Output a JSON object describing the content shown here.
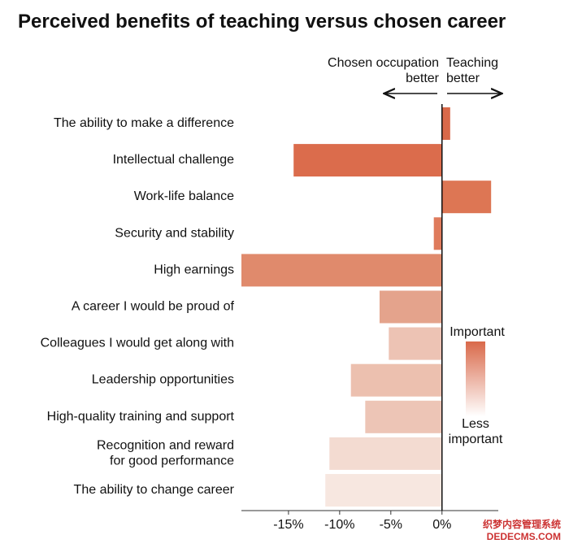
{
  "chart_data": {
    "type": "hbar",
    "title": "Perceived benefits of teaching versus chosen career",
    "annotations": {
      "left": "Chosen occupation\nbetter",
      "right": "Teaching\nbetter"
    },
    "legend": {
      "high": "Important",
      "low": "Less\nimportant",
      "high_color": "#d9694a",
      "low_color": "#ffffff"
    },
    "categories": [
      "The ability to make a difference",
      "Intellectual challenge",
      "Work-life balance",
      "Security and stability",
      "High earnings",
      "A career I would be proud of",
      "Colleagues I would get along with",
      "Leadership opportunities",
      "High-quality training and support",
      "Recognition and reward\nfor good performance",
      "The ability to change career"
    ],
    "values": [
      0.8,
      -14.5,
      4.8,
      -0.8,
      -19.6,
      -6.1,
      -5.2,
      -8.9,
      -7.5,
      -11.0,
      -11.4
    ],
    "colors": [
      "#d9694a",
      "#db6c4c",
      "#dd7654",
      "#df7b5c",
      "#e08a6c",
      "#e4a38c",
      "#edc3b4",
      "#ecc0af",
      "#edc5b6",
      "#f3dbd1",
      "#f7e7e0"
    ],
    "xlim": [
      -19.6,
      5.5
    ],
    "xticks": [
      {
        "value": -15,
        "label": "-15%"
      },
      {
        "value": -10,
        "label": "-10%"
      },
      {
        "value": -5,
        "label": "-5%"
      },
      {
        "value": 0,
        "label": "0%"
      }
    ],
    "watermark": [
      "织梦内容管理系统",
      "DEDECMS.COM"
    ]
  }
}
